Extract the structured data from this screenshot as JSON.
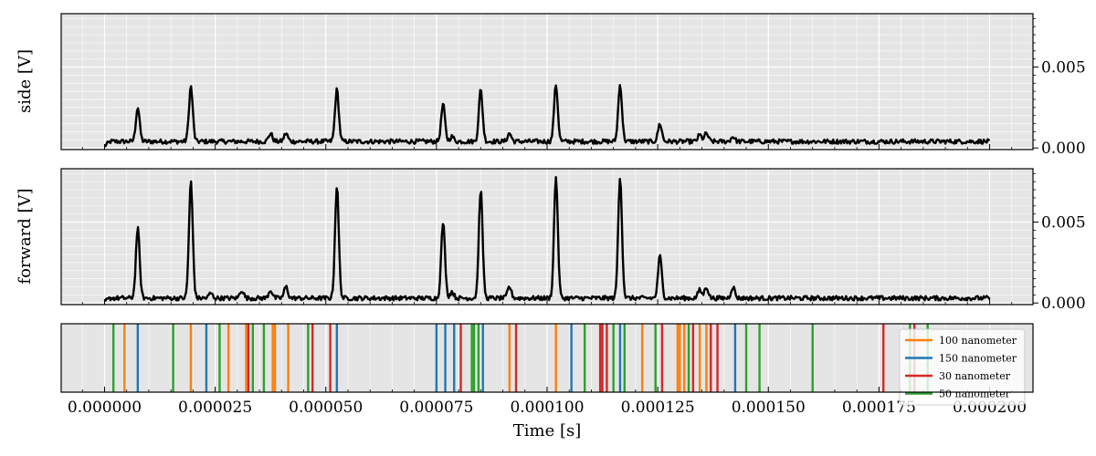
{
  "chart_data": [
    {
      "type": "line",
      "ylabel": "side [V]",
      "ylim": [
        -0.0001,
        0.0083
      ],
      "yticks": [
        0.0,
        0.005
      ],
      "ytick_labels": [
        "0.000",
        "0.005"
      ],
      "grid": true,
      "baseline": 0.0004,
      "line_color": "#000000",
      "peaks": [
        {
          "x": 7.5e-06,
          "y": 0.0025
        },
        {
          "x": 1.95e-05,
          "y": 0.0038
        },
        {
          "x": 3.75e-05,
          "y": 0.0009
        },
        {
          "x": 4.1e-05,
          "y": 0.0009
        },
        {
          "x": 5.25e-05,
          "y": 0.0036
        },
        {
          "x": 7.65e-05,
          "y": 0.0027
        },
        {
          "x": 7.85e-05,
          "y": 0.0007
        },
        {
          "x": 8.5e-05,
          "y": 0.0036
        },
        {
          "x": 9.15e-05,
          "y": 0.0009
        },
        {
          "x": 0.000102,
          "y": 0.0039
        },
        {
          "x": 0.0001165,
          "y": 0.0039
        },
        {
          "x": 0.0001255,
          "y": 0.0015
        },
        {
          "x": 0.0001345,
          "y": 0.0008
        },
        {
          "x": 0.000136,
          "y": 0.0009
        },
        {
          "x": 0.000142,
          "y": 0.0007
        }
      ]
    },
    {
      "type": "line",
      "ylabel": "forward [V]",
      "ylim": [
        -0.0001,
        0.0083
      ],
      "yticks": [
        0.0,
        0.005
      ],
      "ytick_labels": [
        "0.000",
        "0.005"
      ],
      "grid": true,
      "baseline": 0.0003,
      "line_color": "#000000",
      "peaks": [
        {
          "x": 7.5e-06,
          "y": 0.0046
        },
        {
          "x": 1.95e-05,
          "y": 0.0075
        },
        {
          "x": 2.4e-05,
          "y": 0.0006
        },
        {
          "x": 3.1e-05,
          "y": 0.0008
        },
        {
          "x": 3.75e-05,
          "y": 0.0008
        },
        {
          "x": 4.1e-05,
          "y": 0.001
        },
        {
          "x": 5.25e-05,
          "y": 0.0072
        },
        {
          "x": 7.65e-05,
          "y": 0.005
        },
        {
          "x": 7.85e-05,
          "y": 0.0007
        },
        {
          "x": 8.5e-05,
          "y": 0.007
        },
        {
          "x": 9.15e-05,
          "y": 0.001
        },
        {
          "x": 0.000102,
          "y": 0.0078
        },
        {
          "x": 0.0001165,
          "y": 0.0078
        },
        {
          "x": 0.0001255,
          "y": 0.0029
        },
        {
          "x": 0.0001345,
          "y": 0.0008
        },
        {
          "x": 0.000136,
          "y": 0.001
        },
        {
          "x": 0.000142,
          "y": 0.001
        }
      ]
    },
    {
      "type": "event_lines",
      "xlabel": "Time [s]",
      "xlim": [
        -9.8e-06,
        0.0002098
      ],
      "xticks": [
        0.0,
        2.5e-05,
        5e-05,
        7.5e-05,
        0.0001,
        0.000125,
        0.00015,
        0.000175,
        0.0002
      ],
      "xtick_labels": [
        "0.000000",
        "0.000025",
        "0.000050",
        "0.000075",
        "0.000100",
        "0.000125",
        "0.000150",
        "0.000175",
        "0.000200"
      ],
      "grid": true,
      "legend_position": "right",
      "series": [
        {
          "name": "100 nanometer",
          "color": "#ff7f0e",
          "x": [
            4.5e-06,
            1.95e-05,
            2.8e-05,
            3.2e-05,
            3.8e-05,
            3.85e-05,
            4.15e-05,
            9.15e-05,
            0.000102,
            0.000112,
            0.0001215,
            0.0001295,
            0.00013,
            0.000131,
            0.0001345,
            0.000136
          ]
        },
        {
          "name": "150 nanometer",
          "color": "#1f77b4",
          "x": [
            7.5e-06,
            2.3e-05,
            5.25e-05,
            7.5e-05,
            7.7e-05,
            7.9e-05,
            8.55e-05,
            0.0001055,
            0.0001165,
            0.0001425
          ]
        },
        {
          "name": "30 nanometer",
          "color": "#d62728",
          "x": [
            3.25e-05,
            4.7e-05,
            5.1e-05,
            8.05e-05,
            9.3e-05,
            0.000112,
            0.0001125,
            0.0001135,
            0.000126,
            0.000133,
            0.000137,
            0.0001385,
            0.000176,
            0.000183
          ]
        },
        {
          "name": "50 nanometer",
          "color": "#2ca02c",
          "x": [
            2e-06,
            1.55e-05,
            2.6e-05,
            3.35e-05,
            3.6e-05,
            4.6e-05,
            8.3e-05,
            8.35e-05,
            8.45e-05,
            0.0001085,
            0.000115,
            0.0001175,
            0.0001245,
            0.000132,
            0.000145,
            0.000148,
            0.00016,
            0.000182,
            0.000186
          ]
        }
      ]
    }
  ]
}
